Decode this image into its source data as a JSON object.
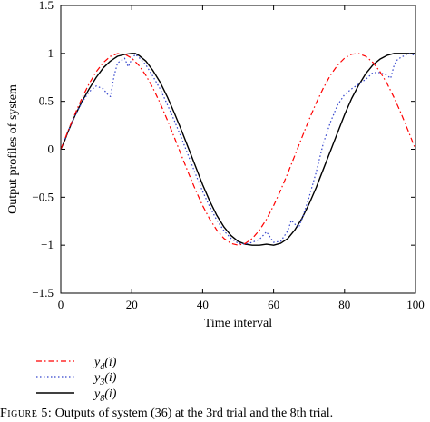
{
  "chart_data": {
    "type": "line",
    "xlabel": "Time interval",
    "ylabel": "Output profiles of system",
    "xlim": [
      0,
      100
    ],
    "ylim": [
      -1.5,
      1.5
    ],
    "xticks": [
      0,
      20,
      40,
      60,
      80,
      100
    ],
    "yticks": [
      -1.5,
      -1,
      -0.5,
      0,
      0.5,
      1,
      1.5
    ],
    "xtick_labels": [
      "0",
      "20",
      "40",
      "60",
      "80",
      "100"
    ],
    "ytick_labels": [
      "−1.5",
      "−1",
      "−0.5",
      "0",
      "0.5",
      "1",
      "1.5"
    ],
    "grid": false,
    "legend_position": "below-left",
    "series": [
      {
        "name": "y_d(i)",
        "label_base": "y",
        "label_sub": "d",
        "label_arg": "(i)",
        "color": "#ff0000",
        "style": "dashdot",
        "x": [
          0,
          2,
          4,
          6,
          8,
          10,
          12,
          14,
          16,
          18,
          20,
          22,
          24,
          26,
          28,
          30,
          32,
          34,
          36,
          38,
          40,
          42,
          44,
          46,
          48,
          50,
          52,
          54,
          56,
          58,
          60,
          62,
          64,
          66,
          68,
          70,
          72,
          74,
          76,
          78,
          80,
          82,
          84,
          86,
          88,
          90,
          92,
          94,
          96,
          98,
          100
        ],
        "y": [
          0,
          0.187,
          0.368,
          0.536,
          0.685,
          0.809,
          0.905,
          0.969,
          0.998,
          0.992,
          0.951,
          0.876,
          0.771,
          0.637,
          0.482,
          0.309,
          0.125,
          -0.063,
          -0.249,
          -0.426,
          -0.588,
          -0.729,
          -0.844,
          -0.93,
          -0.982,
          -1.0,
          -0.982,
          -0.93,
          -0.844,
          -0.729,
          -0.588,
          -0.426,
          -0.249,
          -0.063,
          0.125,
          0.309,
          0.482,
          0.637,
          0.771,
          0.876,
          0.951,
          0.992,
          0.998,
          0.969,
          0.905,
          0.809,
          0.685,
          0.536,
          0.368,
          0.187,
          0
        ]
      },
      {
        "name": "y_3(i)",
        "label_base": "y",
        "label_sub": "3",
        "label_arg": "(i)",
        "color": "#3344cc",
        "style": "dotted",
        "x": [
          0,
          2,
          4,
          6,
          8,
          10,
          12,
          13,
          14,
          15,
          16,
          18,
          19,
          20,
          21,
          22,
          24,
          26,
          28,
          30,
          32,
          34,
          36,
          38,
          40,
          42,
          44,
          46,
          48,
          50,
          52,
          54,
          56,
          58,
          60,
          62,
          64,
          65,
          66,
          67,
          68,
          70,
          72,
          74,
          76,
          78,
          80,
          82,
          84,
          86,
          88,
          90,
          92,
          93,
          94,
          95,
          96,
          98,
          100
        ],
        "y": [
          0,
          0.18,
          0.35,
          0.49,
          0.6,
          0.66,
          0.63,
          0.58,
          0.55,
          0.76,
          0.9,
          0.95,
          0.86,
          0.94,
          0.99,
          0.96,
          0.88,
          0.76,
          0.63,
          0.47,
          0.3,
          0.12,
          -0.07,
          -0.26,
          -0.44,
          -0.6,
          -0.74,
          -0.85,
          -0.93,
          -0.98,
          -0.99,
          -0.97,
          -0.94,
          -0.86,
          -0.97,
          -0.96,
          -0.85,
          -0.74,
          -0.78,
          -0.82,
          -0.73,
          -0.5,
          -0.24,
          0.06,
          0.28,
          0.46,
          0.57,
          0.63,
          0.68,
          0.73,
          0.8,
          0.8,
          0.77,
          0.74,
          0.88,
          0.94,
          0.96,
          1.0,
          0.98
        ]
      },
      {
        "name": "y_8(i)",
        "label_base": "y",
        "label_sub": "8",
        "label_arg": "(i)",
        "color": "#000000",
        "style": "solid",
        "x": [
          0,
          1,
          2,
          4,
          6,
          8,
          10,
          12,
          14,
          16,
          18,
          20,
          21,
          22,
          24,
          26,
          28,
          30,
          32,
          34,
          36,
          38,
          40,
          42,
          44,
          46,
          48,
          50,
          52,
          54,
          56,
          58,
          60,
          62,
          64,
          66,
          68,
          70,
          72,
          74,
          76,
          78,
          80,
          82,
          84,
          86,
          88,
          90,
          92,
          94,
          96,
          98,
          100
        ],
        "y": [
          0,
          0.08,
          0.18,
          0.35,
          0.5,
          0.63,
          0.75,
          0.85,
          0.92,
          0.97,
          0.99,
          1.0,
          1.0,
          0.98,
          0.92,
          0.82,
          0.7,
          0.55,
          0.38,
          0.2,
          0.01,
          -0.18,
          -0.37,
          -0.54,
          -0.69,
          -0.81,
          -0.9,
          -0.96,
          -0.99,
          -1.0,
          -1.0,
          -0.99,
          -1.0,
          -0.98,
          -0.93,
          -0.84,
          -0.72,
          -0.57,
          -0.4,
          -0.21,
          -0.02,
          0.17,
          0.36,
          0.53,
          0.67,
          0.79,
          0.88,
          0.94,
          0.98,
          1.0,
          1.0,
          1.0,
          1.0
        ]
      }
    ]
  },
  "caption": {
    "figure_word": "Figure 5:",
    "text": "Outputs of system (36) at the 3rd trial and the 8th trial."
  }
}
